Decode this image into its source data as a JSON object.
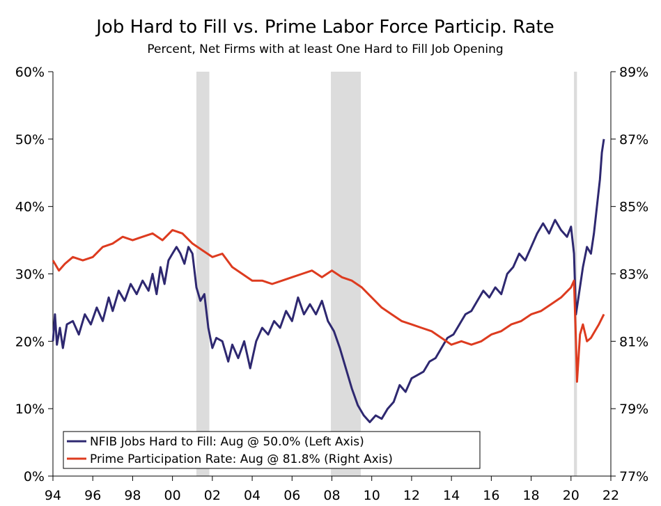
{
  "chart_data": {
    "type": "line",
    "title": "Job Hard to Fill vs. Prime Labor Force Particip. Rate",
    "subtitle": "Percent, Net Firms with at least One Hard to Fill Job Opening",
    "x_ticks": [
      {
        "year": 1994,
        "label": "94"
      },
      {
        "year": 1996,
        "label": "96"
      },
      {
        "year": 1998,
        "label": "98"
      },
      {
        "year": 2000,
        "label": "00"
      },
      {
        "year": 2002,
        "label": "02"
      },
      {
        "year": 2004,
        "label": "04"
      },
      {
        "year": 2006,
        "label": "06"
      },
      {
        "year": 2008,
        "label": "08"
      },
      {
        "year": 2010,
        "label": "10"
      },
      {
        "year": 2012,
        "label": "12"
      },
      {
        "year": 2014,
        "label": "14"
      },
      {
        "year": 2016,
        "label": "16"
      },
      {
        "year": 2018,
        "label": "18"
      },
      {
        "year": 2020,
        "label": "20"
      },
      {
        "year": 2022,
        "label": "22"
      }
    ],
    "xlim": [
      1994,
      2022
    ],
    "y_left": {
      "ylim": [
        0,
        60
      ],
      "ticks": [
        0,
        10,
        20,
        30,
        40,
        50,
        60
      ],
      "tick_labels": [
        "0%",
        "10%",
        "20%",
        "30%",
        "40%",
        "50%",
        "60%"
      ]
    },
    "y_right": {
      "ylim": [
        77,
        89
      ],
      "ticks": [
        77,
        79,
        81,
        83,
        85,
        87,
        89
      ],
      "tick_labels": [
        "77%",
        "79%",
        "81%",
        "83%",
        "85%",
        "87%",
        "89%"
      ]
    },
    "recessions": [
      {
        "start": 2001.2,
        "end": 2001.85
      },
      {
        "start": 2007.95,
        "end": 2009.45
      },
      {
        "start": 2020.15,
        "end": 2020.3
      }
    ],
    "series": [
      {
        "name": "NFIB Jobs Hard to Fill",
        "axis": "left",
        "color": "#2e2870",
        "legend": "NFIB Jobs Hard to Fill: Aug @ 50.0% (Left Axis)",
        "points": [
          [
            1994.0,
            20
          ],
          [
            1994.1,
            24
          ],
          [
            1994.2,
            19.5
          ],
          [
            1994.35,
            22
          ],
          [
            1994.5,
            19
          ],
          [
            1994.7,
            22.5
          ],
          [
            1995.0,
            23
          ],
          [
            1995.3,
            21
          ],
          [
            1995.6,
            24
          ],
          [
            1995.9,
            22.5
          ],
          [
            1996.2,
            25
          ],
          [
            1996.5,
            23
          ],
          [
            1996.8,
            26.5
          ],
          [
            1997.0,
            24.5
          ],
          [
            1997.3,
            27.5
          ],
          [
            1997.6,
            26
          ],
          [
            1997.9,
            28.5
          ],
          [
            1998.2,
            27
          ],
          [
            1998.5,
            29
          ],
          [
            1998.8,
            27.5
          ],
          [
            1999.0,
            30
          ],
          [
            1999.2,
            27
          ],
          [
            1999.4,
            31
          ],
          [
            1999.6,
            28.5
          ],
          [
            1999.8,
            32
          ],
          [
            2000.0,
            33
          ],
          [
            2000.2,
            34
          ],
          [
            2000.4,
            33
          ],
          [
            2000.6,
            31.5
          ],
          [
            2000.8,
            34
          ],
          [
            2001.0,
            33
          ],
          [
            2001.2,
            28
          ],
          [
            2001.4,
            26
          ],
          [
            2001.6,
            27
          ],
          [
            2001.8,
            22
          ],
          [
            2002.0,
            19
          ],
          [
            2002.2,
            20.5
          ],
          [
            2002.5,
            20
          ],
          [
            2002.8,
            17
          ],
          [
            2003.0,
            19.5
          ],
          [
            2003.3,
            17.5
          ],
          [
            2003.6,
            20
          ],
          [
            2003.9,
            16
          ],
          [
            2004.2,
            20
          ],
          [
            2004.5,
            22
          ],
          [
            2004.8,
            21
          ],
          [
            2005.1,
            23
          ],
          [
            2005.4,
            22
          ],
          [
            2005.7,
            24.5
          ],
          [
            2006.0,
            23
          ],
          [
            2006.3,
            26.5
          ],
          [
            2006.6,
            24
          ],
          [
            2006.9,
            25.5
          ],
          [
            2007.2,
            24
          ],
          [
            2007.5,
            26
          ],
          [
            2007.8,
            23
          ],
          [
            2008.1,
            21.5
          ],
          [
            2008.4,
            19
          ],
          [
            2008.7,
            16
          ],
          [
            2009.0,
            13
          ],
          [
            2009.3,
            10.5
          ],
          [
            2009.6,
            9
          ],
          [
            2009.9,
            8
          ],
          [
            2010.2,
            9
          ],
          [
            2010.5,
            8.5
          ],
          [
            2010.8,
            10
          ],
          [
            2011.1,
            11
          ],
          [
            2011.4,
            13.5
          ],
          [
            2011.7,
            12.5
          ],
          [
            2012.0,
            14.5
          ],
          [
            2012.3,
            15
          ],
          [
            2012.6,
            15.5
          ],
          [
            2012.9,
            17
          ],
          [
            2013.2,
            17.5
          ],
          [
            2013.5,
            19
          ],
          [
            2013.8,
            20.5
          ],
          [
            2014.1,
            21
          ],
          [
            2014.4,
            22.5
          ],
          [
            2014.7,
            24
          ],
          [
            2015.0,
            24.5
          ],
          [
            2015.3,
            26
          ],
          [
            2015.6,
            27.5
          ],
          [
            2015.9,
            26.5
          ],
          [
            2016.2,
            28
          ],
          [
            2016.5,
            27
          ],
          [
            2016.8,
            30
          ],
          [
            2017.1,
            31
          ],
          [
            2017.4,
            33
          ],
          [
            2017.7,
            32
          ],
          [
            2018.0,
            34
          ],
          [
            2018.3,
            36
          ],
          [
            2018.6,
            37.5
          ],
          [
            2018.9,
            36
          ],
          [
            2019.2,
            38
          ],
          [
            2019.5,
            36.5
          ],
          [
            2019.8,
            35.5
          ],
          [
            2020.0,
            37
          ],
          [
            2020.15,
            33
          ],
          [
            2020.25,
            24
          ],
          [
            2020.4,
            27
          ],
          [
            2020.6,
            31
          ],
          [
            2020.8,
            34
          ],
          [
            2021.0,
            33
          ],
          [
            2021.15,
            36
          ],
          [
            2021.3,
            40
          ],
          [
            2021.45,
            44
          ],
          [
            2021.55,
            48
          ],
          [
            2021.65,
            50
          ]
        ]
      },
      {
        "name": "Prime Participation Rate",
        "axis": "right",
        "color": "#dd3b1f",
        "legend": "Prime Participation Rate: Aug @ 81.8% (Right Axis)",
        "points": [
          [
            1994.0,
            83.4
          ],
          [
            1994.3,
            83.1
          ],
          [
            1994.6,
            83.3
          ],
          [
            1995.0,
            83.5
          ],
          [
            1995.5,
            83.4
          ],
          [
            1996.0,
            83.5
          ],
          [
            1996.5,
            83.8
          ],
          [
            1997.0,
            83.9
          ],
          [
            1997.5,
            84.1
          ],
          [
            1998.0,
            84.0
          ],
          [
            1998.5,
            84.1
          ],
          [
            1999.0,
            84.2
          ],
          [
            1999.5,
            84.0
          ],
          [
            2000.0,
            84.3
          ],
          [
            2000.5,
            84.2
          ],
          [
            2001.0,
            83.9
          ],
          [
            2001.5,
            83.7
          ],
          [
            2002.0,
            83.5
          ],
          [
            2002.5,
            83.6
          ],
          [
            2003.0,
            83.2
          ],
          [
            2003.5,
            83.0
          ],
          [
            2004.0,
            82.8
          ],
          [
            2004.5,
            82.8
          ],
          [
            2005.0,
            82.7
          ],
          [
            2005.5,
            82.8
          ],
          [
            2006.0,
            82.9
          ],
          [
            2006.5,
            83.0
          ],
          [
            2007.0,
            83.1
          ],
          [
            2007.5,
            82.9
          ],
          [
            2008.0,
            83.1
          ],
          [
            2008.5,
            82.9
          ],
          [
            2009.0,
            82.8
          ],
          [
            2009.5,
            82.6
          ],
          [
            2010.0,
            82.3
          ],
          [
            2010.5,
            82.0
          ],
          [
            2011.0,
            81.8
          ],
          [
            2011.5,
            81.6
          ],
          [
            2012.0,
            81.5
          ],
          [
            2012.5,
            81.4
          ],
          [
            2013.0,
            81.3
          ],
          [
            2013.5,
            81.1
          ],
          [
            2014.0,
            80.9
          ],
          [
            2014.5,
            81.0
          ],
          [
            2015.0,
            80.9
          ],
          [
            2015.5,
            81.0
          ],
          [
            2016.0,
            81.2
          ],
          [
            2016.5,
            81.3
          ],
          [
            2017.0,
            81.5
          ],
          [
            2017.5,
            81.6
          ],
          [
            2018.0,
            81.8
          ],
          [
            2018.5,
            81.9
          ],
          [
            2019.0,
            82.1
          ],
          [
            2019.5,
            82.3
          ],
          [
            2020.0,
            82.6
          ],
          [
            2020.15,
            82.8
          ],
          [
            2020.25,
            81.0
          ],
          [
            2020.3,
            79.8
          ],
          [
            2020.45,
            81.2
          ],
          [
            2020.6,
            81.5
          ],
          [
            2020.8,
            81.0
          ],
          [
            2021.0,
            81.1
          ],
          [
            2021.2,
            81.3
          ],
          [
            2021.4,
            81.5
          ],
          [
            2021.65,
            81.8
          ]
        ]
      }
    ],
    "legend_position": "bottom-left"
  }
}
